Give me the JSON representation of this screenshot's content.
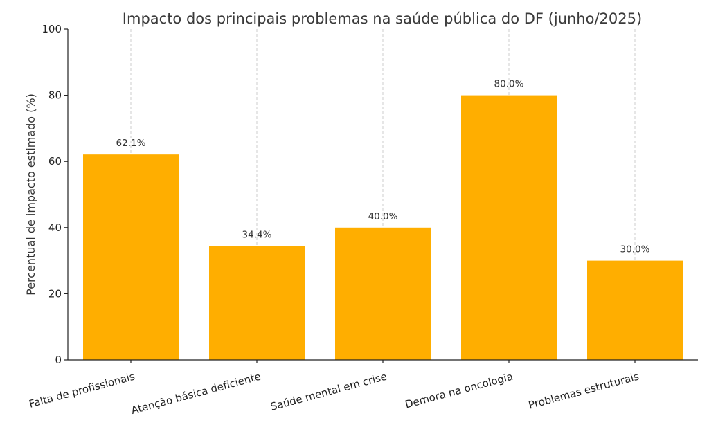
{
  "chart_data": {
    "type": "bar",
    "title": "Impacto dos principais problemas na saúde pública do DF (junho/2025)",
    "xlabel": "",
    "ylabel": "Percentual de impacto estimado (%)",
    "categories": [
      "Falta de profissionais",
      "Atenção básica deficiente",
      "Saúde mental em crise",
      "Demora na oncologia",
      "Problemas estruturais"
    ],
    "values": [
      62.1,
      34.4,
      40.0,
      80.0,
      30.0
    ],
    "value_labels": [
      "62.1%",
      "34.4%",
      "40.0%",
      "80.0%",
      "30.0%"
    ],
    "ylim": [
      0,
      100
    ],
    "yticks": [
      0,
      20,
      40,
      60,
      80,
      100
    ],
    "grid": "vertical-dashed",
    "bar_color": "#FFAE00"
  }
}
